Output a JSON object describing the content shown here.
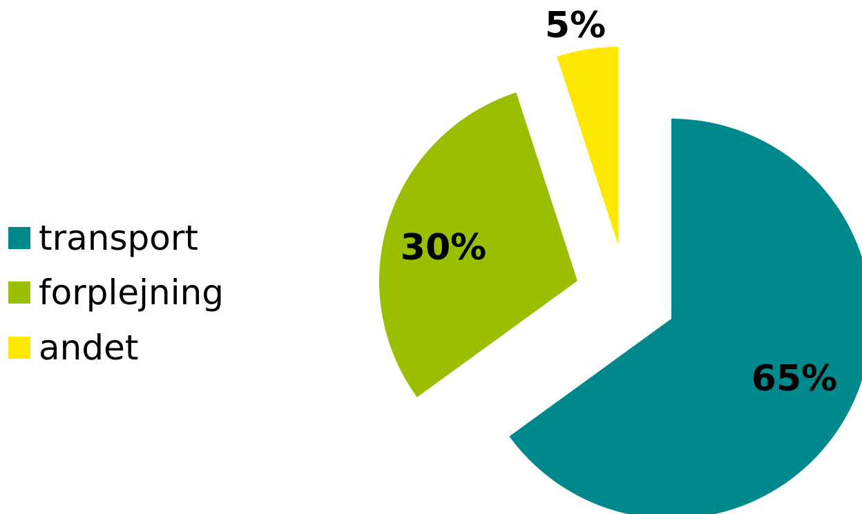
{
  "chart_data": {
    "type": "pie",
    "title": "",
    "categories": [
      "transport",
      "forplejning",
      "andet"
    ],
    "values": [
      65,
      30,
      5
    ],
    "data_labels": [
      "65%",
      "30%",
      "5%"
    ],
    "colors": [
      "#00898C",
      "#99BF00",
      "#FFE800"
    ],
    "exploded": true,
    "start_angle_deg": 0,
    "direction": "clockwise",
    "legend_position": "left"
  }
}
